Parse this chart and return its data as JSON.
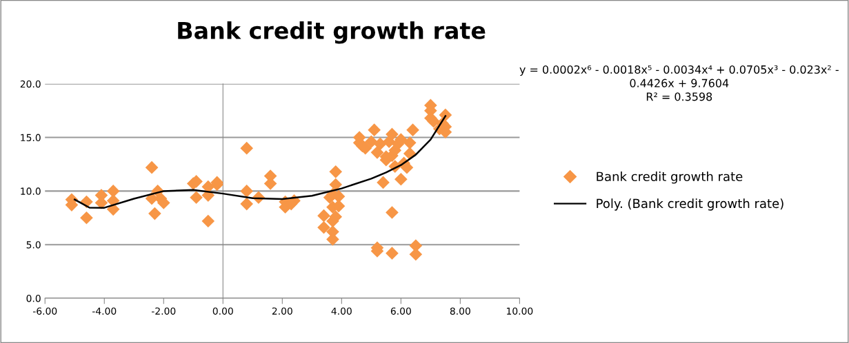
{
  "chart_data": {
    "type": "scatter",
    "title": "Bank credit growth rate",
    "annotations": [
      "y = 0.0002x⁶ - 0.0018x⁵ - 0.0034x⁴ + 0.0705x³ - 0.023x² -\n0.4426x + 9.7604\nR² = 0.3598"
    ],
    "xlim": [
      -6,
      10
    ],
    "ylim": [
      0,
      20
    ],
    "xticks": [
      {
        "value": -6,
        "label": "-6.00"
      },
      {
        "value": -4,
        "label": "-4.00"
      },
      {
        "value": -2,
        "label": "-2.00"
      },
      {
        "value": 0,
        "label": "0.00"
      },
      {
        "value": 2,
        "label": "2.00"
      },
      {
        "value": 4,
        "label": "4.00"
      },
      {
        "value": 6,
        "label": "6.00"
      },
      {
        "value": 8,
        "label": "8.00"
      },
      {
        "value": 10,
        "label": "10.00"
      }
    ],
    "yticks": [
      {
        "value": 0,
        "label": "0.0"
      },
      {
        "value": 5,
        "label": "5.0"
      },
      {
        "value": 10,
        "label": "10.0"
      },
      {
        "value": 15,
        "label": "15.0"
      },
      {
        "value": 20,
        "label": "20.0"
      }
    ],
    "grid": "y",
    "legend": "right",
    "marker": "diamond",
    "series": [
      {
        "name": "Bank credit growth rate",
        "color": "#f79646",
        "x": [
          -5.1,
          -5.1,
          -4.6,
          -4.6,
          -4.1,
          -4.1,
          -3.7,
          -3.7,
          -3.7,
          -2.4,
          -2.3,
          -2.4,
          -2.2,
          -2.1,
          -2.0,
          -1.0,
          -0.9,
          -0.9,
          -0.5,
          -0.5,
          -0.5,
          -0.2,
          -0.2,
          0.8,
          0.8,
          0.8,
          1.2,
          1.6,
          1.6,
          2.1,
          2.1,
          2.4,
          2.3,
          3.4,
          3.4,
          3.6,
          3.7,
          3.7,
          3.7,
          3.7,
          3.7,
          3.8,
          3.8,
          3.9,
          3.9,
          3.8,
          4.6,
          4.6,
          4.7,
          4.8,
          5.0,
          5.1,
          5.2,
          5.3,
          5.4,
          5.5,
          5.6,
          5.7,
          5.7,
          5.8,
          5.8,
          5.9,
          6.0,
          6.0,
          6.1,
          6.2,
          6.3,
          6.4,
          6.3,
          5.7,
          5.2,
          5.2,
          5.7,
          6.5,
          6.5,
          5.5,
          7.0,
          7.0,
          7.0,
          7.1,
          7.3,
          7.5,
          7.5,
          7.5,
          7.4
        ],
        "values": [
          9.2,
          8.7,
          9.0,
          7.5,
          9.6,
          8.9,
          10.0,
          9.1,
          8.3,
          12.2,
          7.9,
          9.3,
          10.0,
          9.3,
          8.9,
          10.7,
          10.9,
          9.4,
          10.4,
          9.6,
          7.2,
          10.6,
          10.8,
          14.0,
          10.0,
          8.8,
          9.4,
          11.4,
          10.7,
          9.0,
          8.5,
          9.1,
          8.8,
          7.7,
          6.6,
          9.4,
          9.7,
          8.5,
          7.2,
          6.2,
          5.5,
          11.8,
          10.6,
          9.5,
          8.6,
          7.6,
          15.0,
          14.5,
          14.2,
          14.0,
          14.6,
          15.7,
          13.6,
          14.4,
          10.8,
          12.9,
          14.6,
          15.3,
          13.3,
          12.3,
          13.8,
          14.4,
          11.1,
          14.8,
          12.6,
          12.2,
          14.5,
          15.7,
          13.5,
          8.0,
          4.7,
          4.4,
          4.2,
          4.9,
          4.1,
          13.2,
          18.0,
          17.5,
          16.8,
          16.5,
          15.8,
          17.1,
          15.5,
          16.0,
          16.3
        ]
      },
      {
        "name": "Poly. (Bank credit growth rate)",
        "type": "line",
        "color": "#000000",
        "marker": "none",
        "line_style": "solid",
        "x": [
          -5,
          -4.5,
          -4,
          -3,
          -2,
          -1,
          0,
          1,
          2,
          3,
          4,
          5,
          5.5,
          6,
          6.5,
          7,
          7.5
        ],
        "values": [
          9.21,
          8.45,
          8.44,
          9.29,
          10.0,
          10.11,
          9.76,
          9.34,
          9.25,
          9.56,
          10.24,
          11.16,
          11.73,
          12.42,
          13.39,
          14.8,
          17.0
        ]
      }
    ]
  }
}
